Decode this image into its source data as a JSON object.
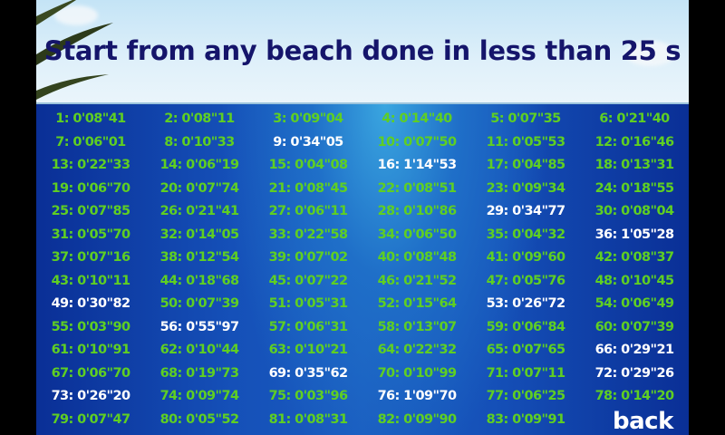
{
  "title": "Start from any beach done in less than 25 s",
  "back_label": "back",
  "colors": {
    "done": "#5fcf22",
    "not_done": "#ffffff",
    "title": "#15156b"
  },
  "times": [
    [
      "1: 0'08\"41",
      "2: 0'08\"11",
      "3: 0'09\"04",
      "4: 0'14\"40",
      "5: 0'07\"35",
      "6: 0'21\"40"
    ],
    [
      "7: 0'06\"01",
      "8: 0'10\"33",
      "9: 0'34\"05",
      "10: 0'07\"50",
      "11: 0'05\"53",
      "12: 0'16\"46"
    ],
    [
      "13: 0'22\"33",
      "14: 0'06\"19",
      "15: 0'04\"08",
      "16: 1'14\"53",
      "17: 0'04\"85",
      "18: 0'13\"31"
    ],
    [
      "19: 0'06\"70",
      "20: 0'07\"74",
      "21: 0'08\"45",
      "22: 0'08\"51",
      "23: 0'09\"34",
      "24: 0'18\"55"
    ],
    [
      "25: 0'07\"85",
      "26: 0'21\"41",
      "27: 0'06\"11",
      "28: 0'10\"86",
      "29: 0'34\"77",
      "30: 0'08\"04"
    ],
    [
      "31: 0'05\"70",
      "32: 0'14\"05",
      "33: 0'22\"58",
      "34: 0'06\"50",
      "35: 0'04\"32",
      "36: 1'05\"28"
    ],
    [
      "37: 0'07\"16",
      "38: 0'12\"54",
      "39: 0'07\"02",
      "40: 0'08\"48",
      "41: 0'09\"60",
      "42: 0'08\"37"
    ],
    [
      "43: 0'10\"11",
      "44: 0'18\"68",
      "45: 0'07\"22",
      "46: 0'21\"52",
      "47: 0'05\"76",
      "48: 0'10\"45"
    ],
    [
      "49: 0'30\"82",
      "50: 0'07\"39",
      "51: 0'05\"31",
      "52: 0'15\"64",
      "53: 0'26\"72",
      "54: 0'06\"49"
    ],
    [
      "55: 0'03\"90",
      "56: 0'55\"97",
      "57: 0'06\"31",
      "58: 0'13\"07",
      "59: 0'06\"84",
      "60: 0'07\"39"
    ],
    [
      "61: 0'10\"91",
      "62: 0'10\"44",
      "63: 0'10\"21",
      "64: 0'22\"32",
      "65: 0'07\"65",
      "66: 0'29\"21"
    ],
    [
      "67: 0'06\"70",
      "68: 0'19\"73",
      "69: 0'35\"62",
      "70: 0'10\"99",
      "71: 0'07\"11",
      "72: 0'29\"26"
    ],
    [
      "73: 0'26\"20",
      "74: 0'09\"74",
      "75: 0'03\"96",
      "76: 1'09\"70",
      "77: 0'06\"25",
      "78: 0'14\"20"
    ],
    [
      "79: 0'07\"47",
      "80: 0'05\"52",
      "81: 0'08\"31",
      "82: 0'09\"90",
      "83: 0'09\"91"
    ]
  ],
  "not_done": [
    9,
    16,
    29,
    36,
    49,
    53,
    56,
    66,
    69,
    72,
    73,
    76
  ]
}
